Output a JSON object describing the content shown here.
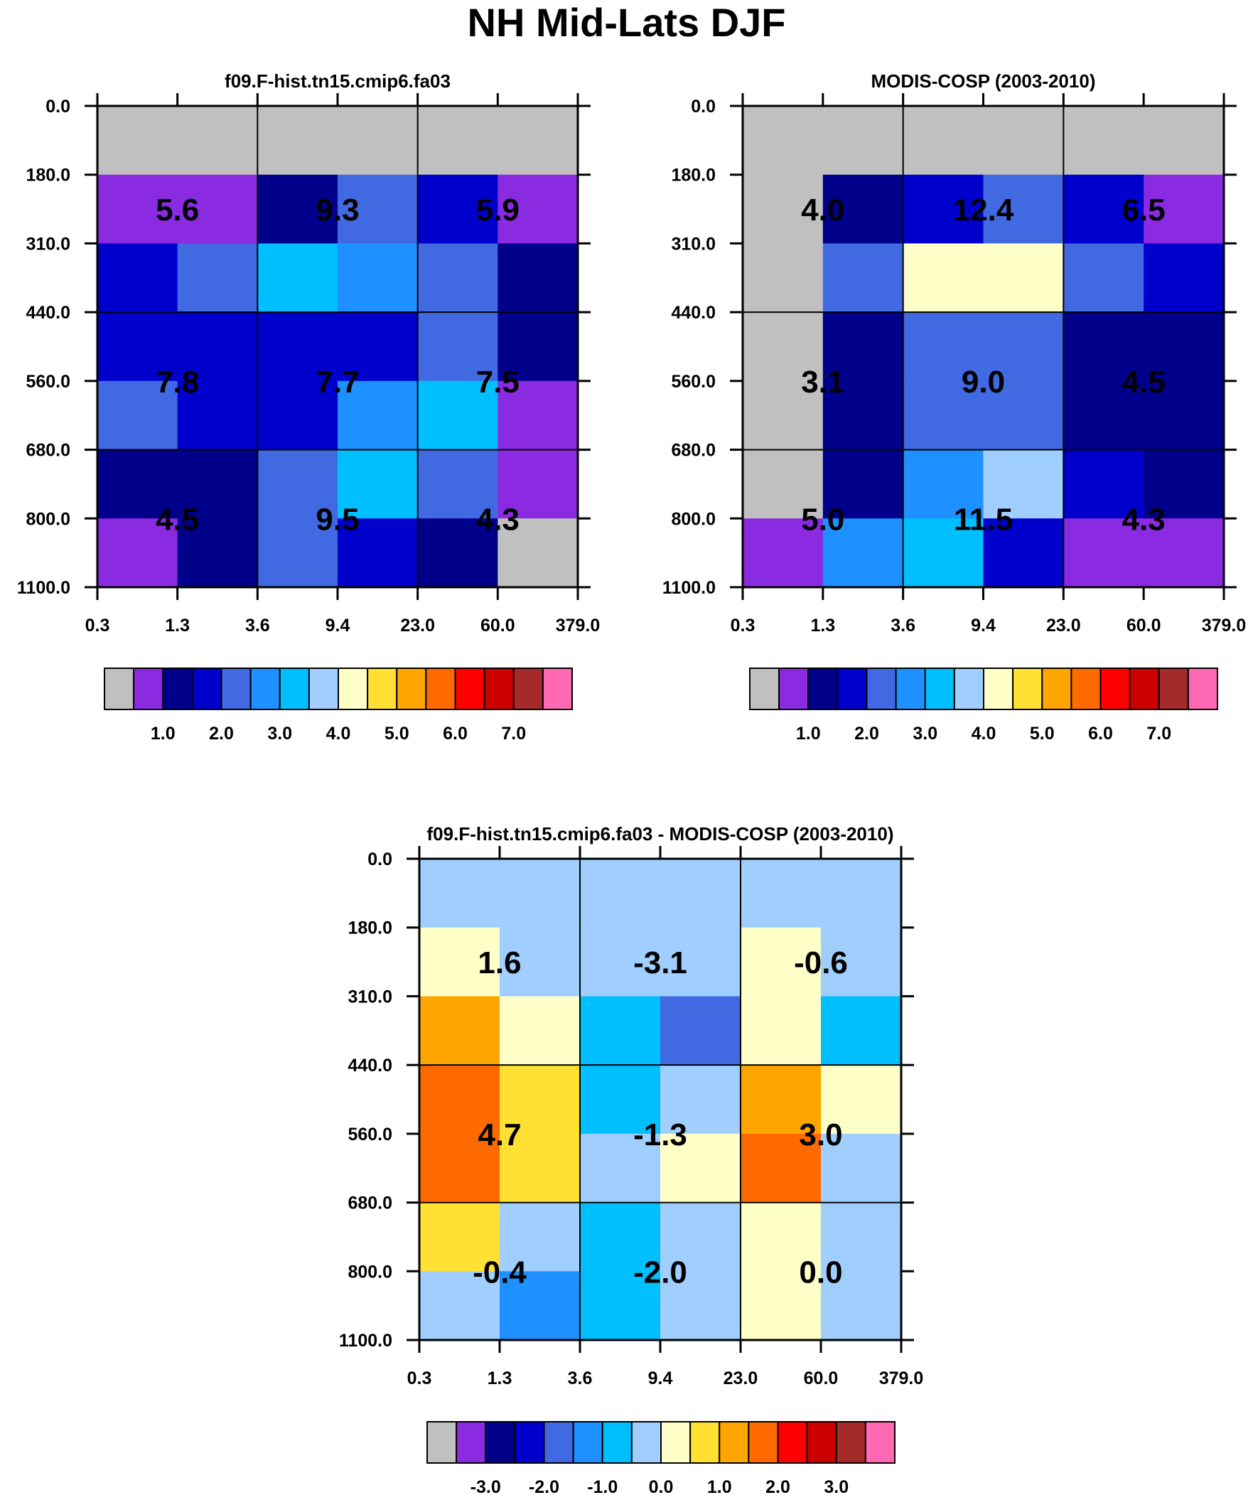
{
  "figure": {
    "title": "NH Mid-Lats DJF"
  },
  "colors": {
    "palette": [
      "#c0c0c0",
      "#8a2be2",
      "#00008b",
      "#0000cd",
      "#4169e1",
      "#1e90ff",
      "#00bfff",
      "#a0cfff",
      "#ffffc8",
      "#ffe033",
      "#ffa500",
      "#ff6a00",
      "#ff0000",
      "#cd0000",
      "#a52a2a",
      "#ff69b4"
    ],
    "grid_line": "#000000",
    "label_text": "#000000"
  },
  "chart_data": [
    {
      "type": "heatmap",
      "title": "f09.F-hist.tn15.cmip6.fa03",
      "x_tick_labels": [
        "0.3",
        "1.3",
        "3.6",
        "9.4",
        "23.0",
        "60.0",
        "379.0"
      ],
      "y_tick_labels": [
        "0.0",
        "180.0",
        "310.0",
        "440.0",
        "560.0",
        "680.0",
        "800.0",
        "1100.0"
      ],
      "cells_color_index": [
        [
          0,
          0,
          0,
          0,
          0,
          0
        ],
        [
          1,
          1,
          2,
          4,
          3,
          1
        ],
        [
          3,
          4,
          6,
          5,
          4,
          2
        ],
        [
          3,
          3,
          3,
          3,
          4,
          2
        ],
        [
          4,
          3,
          3,
          5,
          6,
          1
        ],
        [
          2,
          2,
          4,
          6,
          4,
          1
        ],
        [
          1,
          2,
          4,
          3,
          2,
          0
        ]
      ],
      "box_labels": [
        [
          "5.6",
          "9.3",
          "5.9"
        ],
        [
          "7.8",
          "7.7",
          "7.5"
        ],
        [
          "4.5",
          "9.5",
          "4.3"
        ]
      ],
      "colorbar": {
        "boxes": 16,
        "tick_labels": [
          "1.0",
          "2.0",
          "3.0",
          "4.0",
          "5.0",
          "6.0",
          "7.0"
        ]
      }
    },
    {
      "type": "heatmap",
      "title": "MODIS-COSP (2003-2010)",
      "x_tick_labels": [
        "0.3",
        "1.3",
        "3.6",
        "9.4",
        "23.0",
        "60.0",
        "379.0"
      ],
      "y_tick_labels": [
        "0.0",
        "180.0",
        "310.0",
        "440.0",
        "560.0",
        "680.0",
        "800.0",
        "1100.0"
      ],
      "cells_color_index": [
        [
          0,
          0,
          0,
          0,
          0,
          0
        ],
        [
          0,
          2,
          3,
          4,
          3,
          1
        ],
        [
          0,
          4,
          8,
          8,
          4,
          3
        ],
        [
          0,
          2,
          4,
          4,
          2,
          2
        ],
        [
          0,
          2,
          4,
          4,
          2,
          2
        ],
        [
          0,
          2,
          5,
          7,
          3,
          2
        ],
        [
          1,
          5,
          6,
          3,
          1,
          1
        ]
      ],
      "box_labels": [
        [
          "4.0",
          "12.4",
          "6.5"
        ],
        [
          "3.1",
          "9.0",
          "4.5"
        ],
        [
          "5.0",
          "11.5",
          "4.3"
        ]
      ],
      "colorbar": {
        "boxes": 16,
        "tick_labels": [
          "1.0",
          "2.0",
          "3.0",
          "4.0",
          "5.0",
          "6.0",
          "7.0"
        ]
      }
    },
    {
      "type": "heatmap",
      "title": "f09.F-hist.tn15.cmip6.fa03 - MODIS-COSP (2003-2010)",
      "x_tick_labels": [
        "0.3",
        "1.3",
        "3.6",
        "9.4",
        "23.0",
        "60.0",
        "379.0"
      ],
      "y_tick_labels": [
        "0.0",
        "180.0",
        "310.0",
        "440.0",
        "560.0",
        "680.0",
        "800.0",
        "1100.0"
      ],
      "cells_color_index": [
        [
          7,
          7,
          7,
          7,
          7,
          7
        ],
        [
          8,
          7,
          7,
          7,
          8,
          7
        ],
        [
          10,
          8,
          6,
          4,
          8,
          6
        ],
        [
          11,
          9,
          6,
          7,
          10,
          8
        ],
        [
          11,
          9,
          7,
          8,
          11,
          7
        ],
        [
          9,
          7,
          6,
          7,
          8,
          7
        ],
        [
          7,
          5,
          6,
          7,
          8,
          7
        ]
      ],
      "box_labels": [
        [
          "1.6",
          "-3.1",
          "-0.6"
        ],
        [
          "4.7",
          "-1.3",
          "3.0"
        ],
        [
          "-0.4",
          "-2.0",
          "0.0"
        ]
      ],
      "colorbar": {
        "boxes": 16,
        "tick_labels": [
          "-3.0",
          "-2.0",
          "-1.0",
          "0.0",
          "1.0",
          "2.0",
          "3.0"
        ]
      }
    }
  ]
}
